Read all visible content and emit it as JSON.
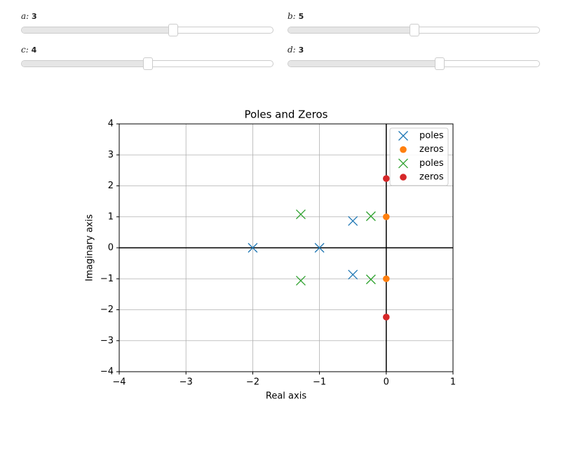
{
  "sliders": [
    {
      "label": "a:",
      "value": 3
    },
    {
      "label": "b:",
      "value": 5
    },
    {
      "label": "c:",
      "value": 4
    },
    {
      "label": "d:",
      "value": 3
    }
  ],
  "chart_data": {
    "type": "scatter",
    "title": "Poles and Zeros",
    "x_label": "Real axis",
    "y_label": "Imaginary axis",
    "xlim": [
      -4,
      1
    ],
    "ylim": [
      -4,
      4
    ],
    "xticks": [
      {
        "value": -4,
        "label": "−4"
      },
      {
        "value": -3,
        "label": "−3"
      },
      {
        "value": -2,
        "label": "−2"
      },
      {
        "value": -1,
        "label": "−1"
      },
      0,
      1
    ],
    "yticks": [
      {
        "value": -4,
        "label": "−4"
      },
      {
        "value": -3,
        "label": "−3"
      },
      {
        "value": -2,
        "label": "−2"
      },
      {
        "value": -1,
        "label": "−1"
      },
      0,
      1,
      2,
      3,
      4
    ],
    "grid": true,
    "legend": "upper right",
    "series": [
      {
        "name": "poles",
        "marker": "x",
        "color": "#1f77b4",
        "x": [
          -2,
          -1,
          -0.5,
          -0.5
        ],
        "values": [
          0,
          0,
          0.866,
          -0.866
        ]
      },
      {
        "name": "zeros",
        "marker": "o",
        "color": "#ff7f0e",
        "x": [
          0,
          0
        ],
        "values": [
          1,
          -1
        ]
      },
      {
        "name": "poles",
        "marker": "x",
        "color": "#2ca02c",
        "x": [
          -1.28,
          -1.28,
          -0.23,
          -0.23
        ],
        "values": [
          1.08,
          -1.06,
          1.02,
          -1.02
        ]
      },
      {
        "name": "zeros",
        "marker": "o",
        "color": "#d62728",
        "x": [
          0,
          0
        ],
        "values": [
          2.236,
          -2.236
        ]
      }
    ]
  }
}
